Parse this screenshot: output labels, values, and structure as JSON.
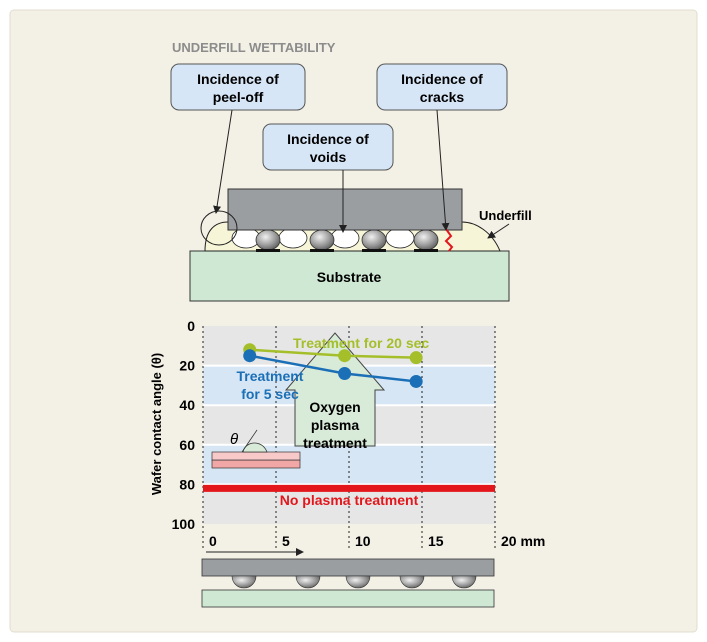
{
  "title": "UNDERFILL WETTABILITY",
  "callouts": {
    "peel_off": [
      "Incidence of",
      "peel-off"
    ],
    "voids": [
      "Incidence of",
      "voids"
    ],
    "cracks": [
      "Incidence of",
      "cracks"
    ]
  },
  "labels": {
    "underfill": "Underfill",
    "substrate": "Substrate",
    "oxygen_plasma": [
      "Oxygen",
      "plasma",
      "treatment"
    ],
    "no_plasma": "No plasma treatment",
    "treatment_20": "Treatment for 20 sec",
    "treatment_5": [
      "Treatment",
      "for 5 sec"
    ],
    "theta": "θ"
  },
  "chart_data": {
    "type": "line",
    "ylabel": "Wafer contact angle (θ)",
    "y_ticks": [
      "0",
      "20",
      "40",
      "60",
      "80",
      "100"
    ],
    "x_ticks": [
      "0",
      "5",
      "10",
      "15",
      "20 mm"
    ],
    "ylim": [
      0,
      100
    ],
    "xlim": [
      0,
      20
    ],
    "y_inverted": true,
    "series": [
      {
        "name": "Treatment for 20 sec",
        "color": "#a4bf2a",
        "x": [
          3.2,
          9.7,
          14.6
        ],
        "y": [
          12,
          15,
          16
        ]
      },
      {
        "name": "Treatment for 5 sec",
        "color": "#1b6fb7",
        "x": [
          3.2,
          9.7,
          14.6
        ],
        "y": [
          15,
          24,
          28
        ]
      },
      {
        "name": "No plasma treatment",
        "color": "#e3161b",
        "x": [
          0,
          20
        ],
        "y": [
          82,
          82
        ]
      }
    ]
  },
  "colors": {
    "panel": "#f3f0e5",
    "callout_fill": "#d7e6f6",
    "substrate": "#cfe8d3",
    "chip": "#9b9ea1",
    "band_blue": "#d7e6f4",
    "band_gray": "#e6e6e6"
  }
}
